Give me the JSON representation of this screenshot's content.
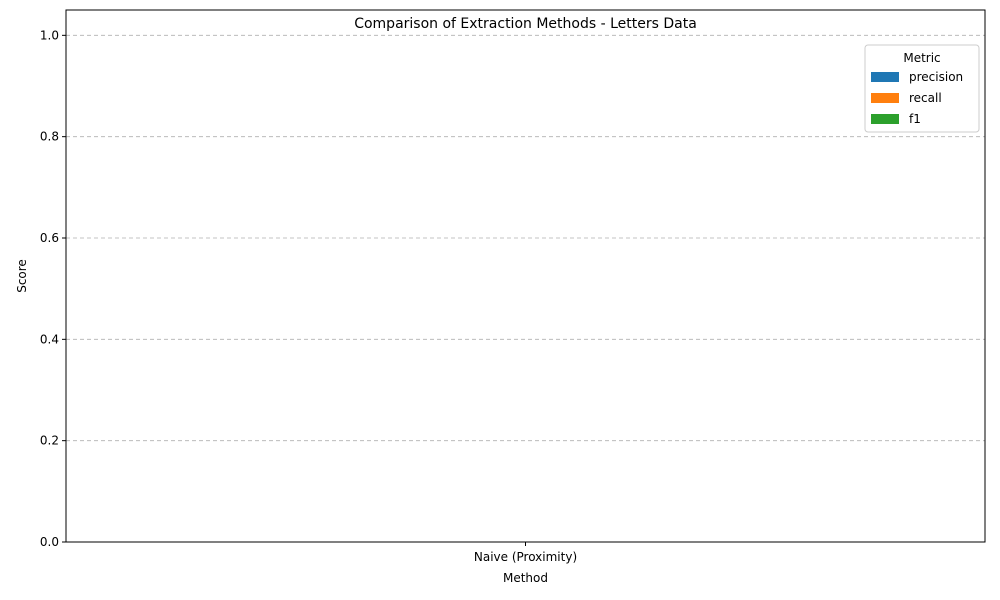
{
  "chart_data": {
    "type": "bar",
    "title": "Comparison of Extraction Methods - Letters Data",
    "xlabel": "Method",
    "ylabel": "Score",
    "categories": [
      "Naive (Proximity)"
    ],
    "series": [
      {
        "name": "precision",
        "values": [
          0
        ],
        "color": "#1f77b4"
      },
      {
        "name": "recall",
        "values": [
          0
        ],
        "color": "#ff7f0e"
      },
      {
        "name": "f1",
        "values": [
          0
        ],
        "color": "#2ca02c"
      }
    ],
    "ylim": [
      0,
      1.05
    ],
    "yticks": [
      "0.0",
      "0.2",
      "0.4",
      "0.6",
      "0.8",
      "1.0"
    ],
    "grid": "y-dashed",
    "legend": {
      "title": "Metric",
      "placement": "top-right"
    }
  }
}
